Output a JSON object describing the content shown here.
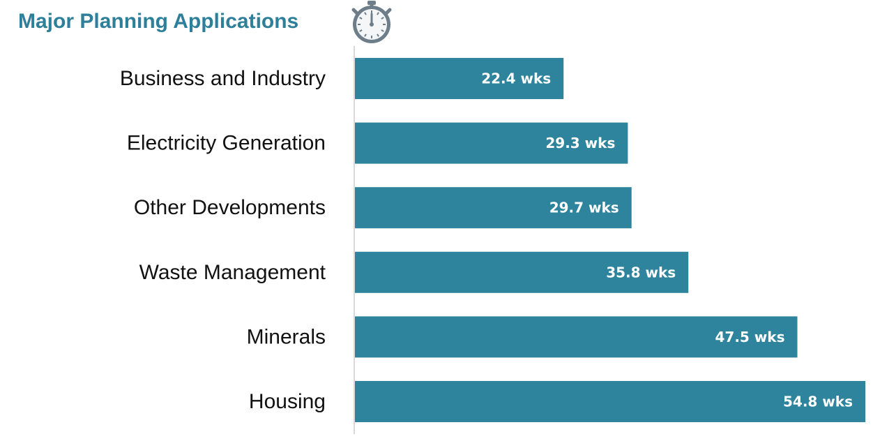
{
  "title": "Major Planning Applications",
  "icon": "stopwatch-icon",
  "colors": {
    "bar": "#2E849C",
    "title": "#2E7F99",
    "icon": "#6D7E8A",
    "axis": "#D9D9D9"
  },
  "chart_data": {
    "type": "bar",
    "orientation": "horizontal",
    "title": "Major Planning Applications",
    "categories": [
      "Business and Industry",
      "Electricity Generation",
      "Other Developments",
      "Waste Management",
      "Minerals",
      "Housing"
    ],
    "values": [
      22.4,
      29.3,
      29.7,
      35.8,
      47.5,
      54.8
    ],
    "value_labels": [
      "22.4 wks",
      "29.3 wks",
      "29.7 wks",
      "35.8 wks",
      "47.5 wks",
      "54.8 wks"
    ],
    "xlabel": "",
    "ylabel": "",
    "xlim": [
      0,
      54.8
    ],
    "grid": false,
    "legend": "none"
  }
}
